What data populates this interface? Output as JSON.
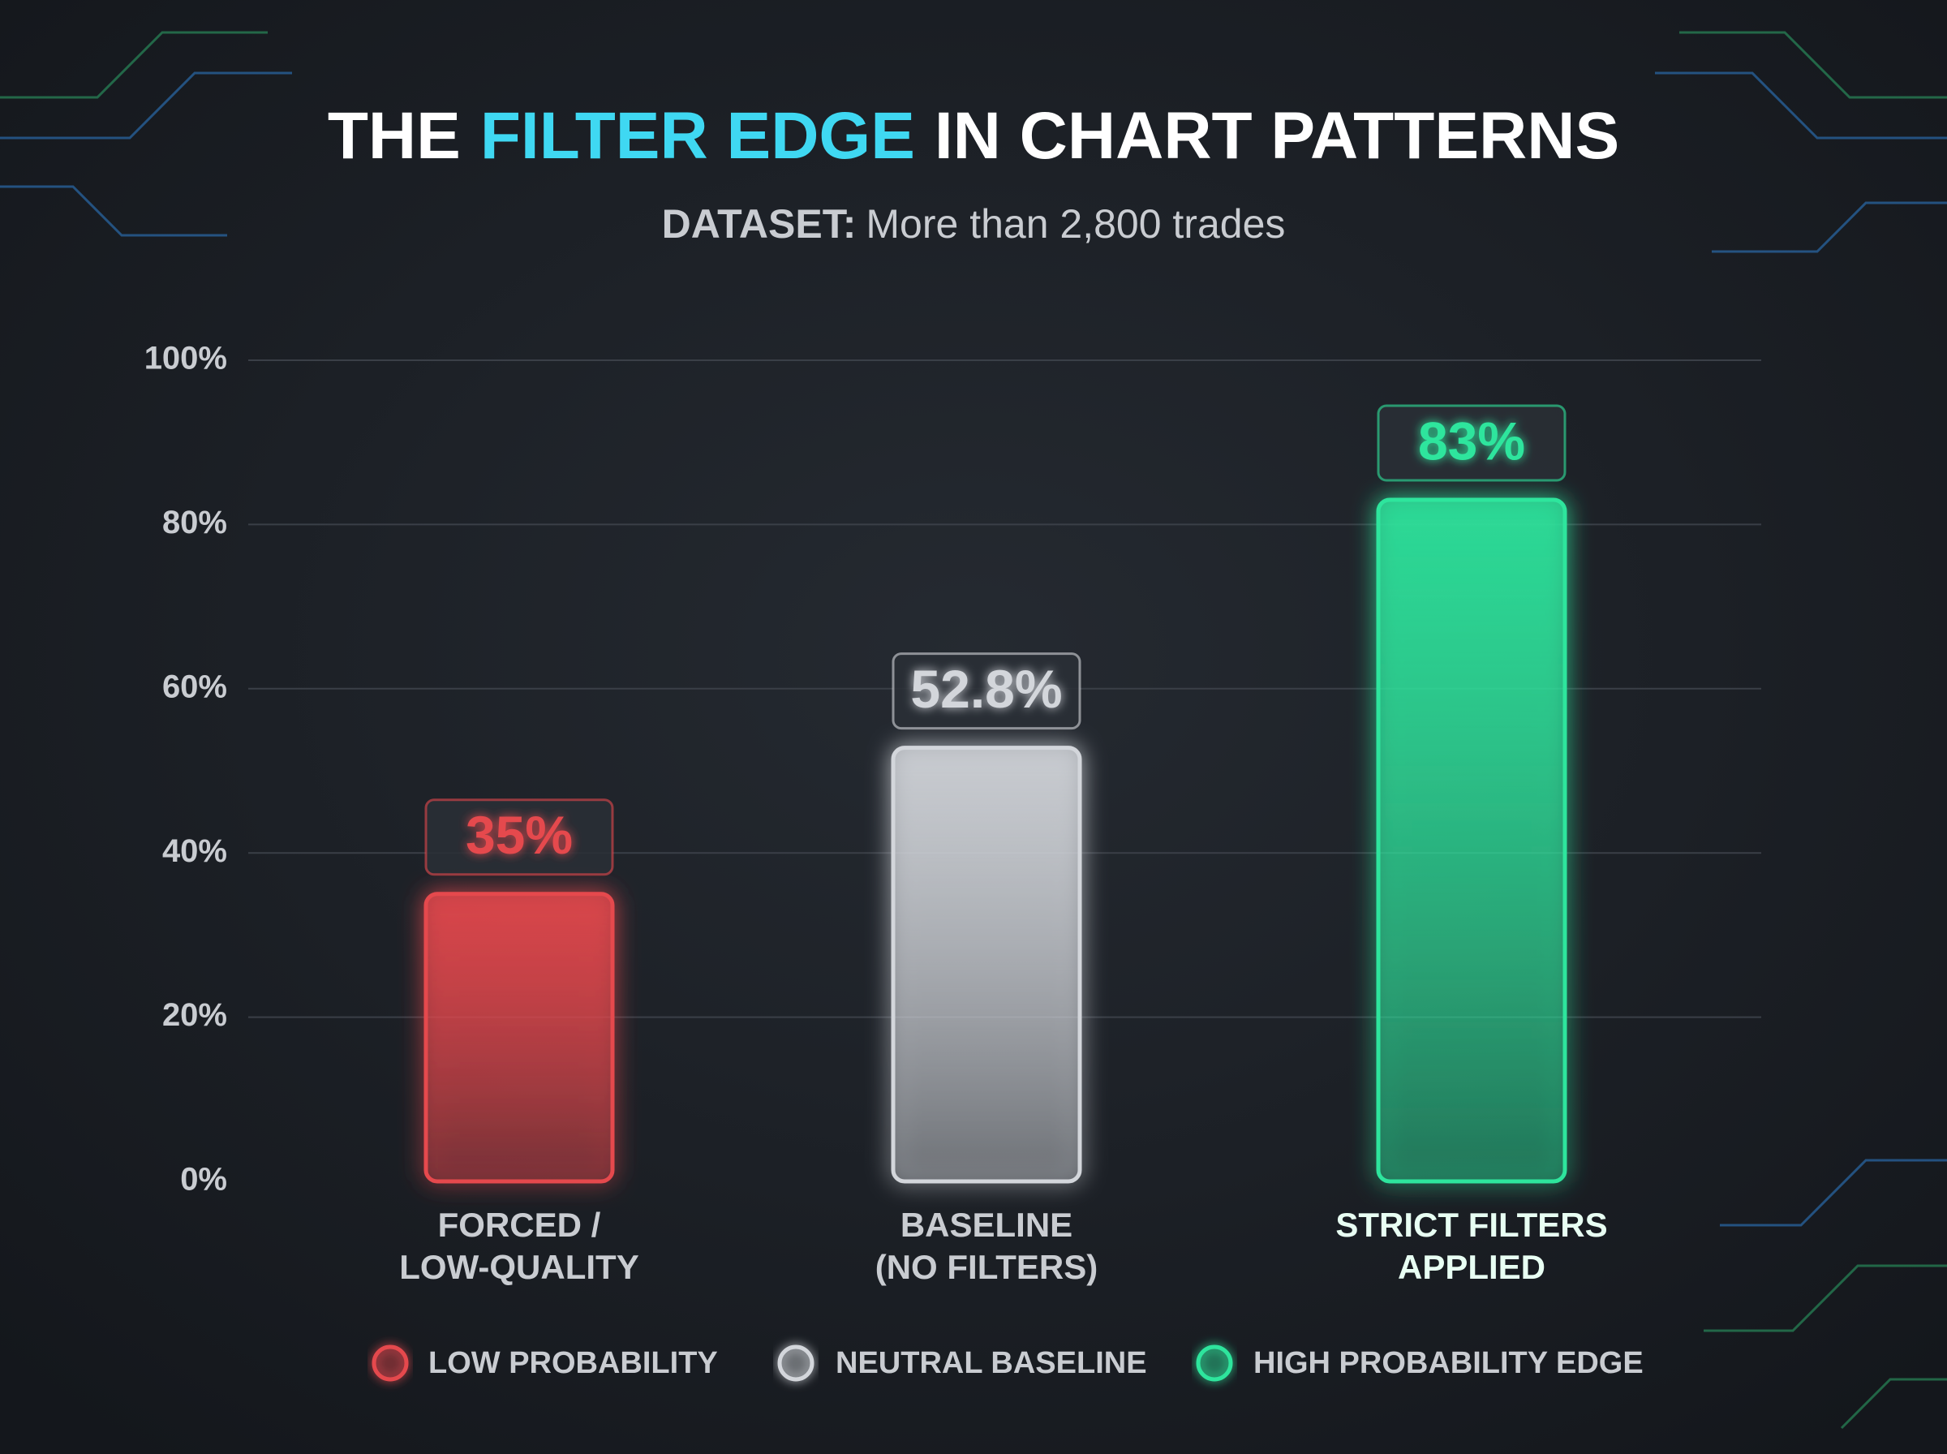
{
  "chart_data": {
    "type": "bar",
    "title_segments": [
      {
        "text": "THE",
        "color": "#ffffff"
      },
      {
        "text": "FILTER EDGE",
        "color": "#3fd8f2"
      },
      {
        "text": "IN CHART PATTERNS",
        "color": "#ffffff"
      }
    ],
    "subtitle_label": "DATASET:",
    "subtitle": "More than 2,800 trades",
    "categories": [
      [
        "FORCED /",
        "LOW-QUALITY"
      ],
      [
        "BASELINE",
        "(NO FILTERS)"
      ],
      [
        "STRICT FILTERS",
        "APPLIED"
      ]
    ],
    "values": [
      35,
      52.8,
      83
    ],
    "value_labels": [
      "35%",
      "52.8%",
      "83%"
    ],
    "colors": [
      "#e5484d",
      "#d3d6db",
      "#2ee59d"
    ],
    "ylim": [
      0,
      100
    ],
    "yticks": [
      {
        "value": 0,
        "label": "0%"
      },
      {
        "value": 20,
        "label": "20%"
      },
      {
        "value": 40,
        "label": "40%"
      },
      {
        "value": 60,
        "label": "60%"
      },
      {
        "value": 80,
        "label": "80%"
      },
      {
        "value": 100,
        "label": "100%"
      }
    ],
    "grid": true,
    "legend": [
      {
        "name": "LOW PROBABILITY",
        "color": "#e5484d"
      },
      {
        "name": "NEUTRAL BASELINE",
        "color": "#d3d6db"
      },
      {
        "name": "HIGH PROBABILITY EDGE",
        "color": "#2ee59d"
      }
    ]
  }
}
